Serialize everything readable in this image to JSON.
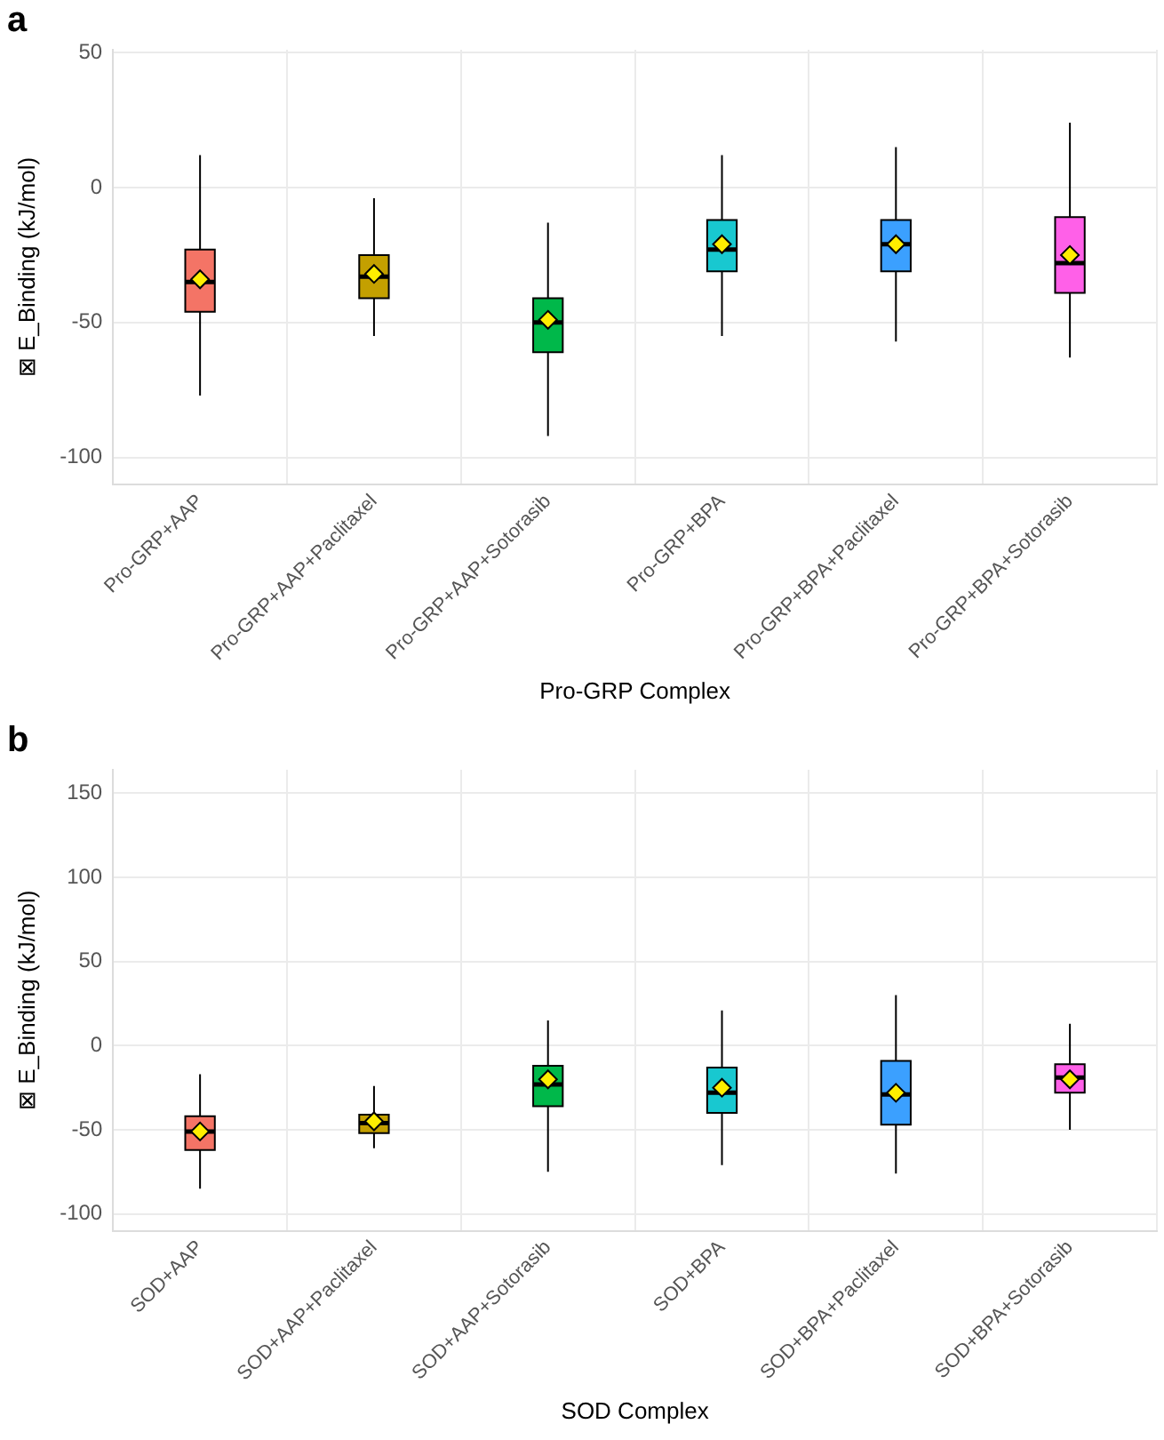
{
  "chart_data": [
    {
      "type": "box",
      "title": "a",
      "xlabel": "Pro-GRP Complex",
      "ylabel": "⊠ E_Binding (kJ/mol)",
      "categories": [
        "Pro-GRP+AAP",
        "Pro-GRP+AAP+Paclitaxel",
        "Pro-GRP+AAP+Sotorasib",
        "Pro-GRP+BPA",
        "Pro-GRP+BPA+Paclitaxel",
        "Pro-GRP+BPA+Sotorasib"
      ],
      "colors": [
        "#f47466",
        "#c4a000",
        "#00b84a",
        "#18c8d0",
        "#3ba0ff",
        "#ff60e8"
      ],
      "boxes": [
        {
          "low": -77,
          "q1": -46,
          "median": -35,
          "q3": -23,
          "high": 12,
          "mean": -34
        },
        {
          "low": -55,
          "q1": -41,
          "median": -33,
          "q3": -25,
          "high": -4,
          "mean": -32
        },
        {
          "low": -92,
          "q1": -61,
          "median": -50,
          "q3": -41,
          "high": -13,
          "mean": -49
        },
        {
          "low": -55,
          "q1": -31,
          "median": -23,
          "q3": -12,
          "high": 12,
          "mean": -21
        },
        {
          "low": -57,
          "q1": -31,
          "median": -21,
          "q3": -12,
          "high": 15,
          "mean": -21
        },
        {
          "low": -63,
          "q1": -39,
          "median": -28,
          "q3": -11,
          "high": 24,
          "mean": -25
        }
      ],
      "ylim": [
        -110,
        51
      ],
      "yticks": [
        -100,
        -50,
        0,
        50
      ],
      "grid": true,
      "marker": "diamond"
    },
    {
      "type": "box",
      "title": "b",
      "xlabel": "SOD Complex",
      "ylabel": "⊠ E_Binding (kJ/mol)",
      "categories": [
        "SOD+AAP",
        "SOD+AAP+Paclitaxel",
        "SOD+AAP+Sotorasib",
        "SOD+BPA",
        "SOD+BPA+Paclitaxel",
        "SOD+BPA+Sotorasib"
      ],
      "colors": [
        "#f47466",
        "#c4a000",
        "#00b84a",
        "#18c8d0",
        "#3ba0ff",
        "#ff60e8"
      ],
      "boxes": [
        {
          "low": -85,
          "q1": -62,
          "median": -51,
          "q3": -42,
          "high": -17,
          "mean": -51
        },
        {
          "low": -61,
          "q1": -52,
          "median": -46,
          "q3": -41,
          "high": -24,
          "mean": -45
        },
        {
          "low": -75,
          "q1": -36,
          "median": -23,
          "q3": -12,
          "high": 15,
          "mean": -20
        },
        {
          "low": -71,
          "q1": -40,
          "median": -28,
          "q3": -13,
          "high": 21,
          "mean": -25
        },
        {
          "low": -76,
          "q1": -47,
          "median": -29,
          "q3": -9,
          "high": 30,
          "mean": -28
        },
        {
          "low": -50,
          "q1": -28,
          "median": -19,
          "q3": -11,
          "high": 13,
          "mean": -20
        }
      ],
      "ylim": [
        -110,
        164
      ],
      "yticks": [
        -100,
        -50,
        0,
        50,
        100,
        150
      ],
      "grid": true,
      "marker": "diamond"
    }
  ]
}
